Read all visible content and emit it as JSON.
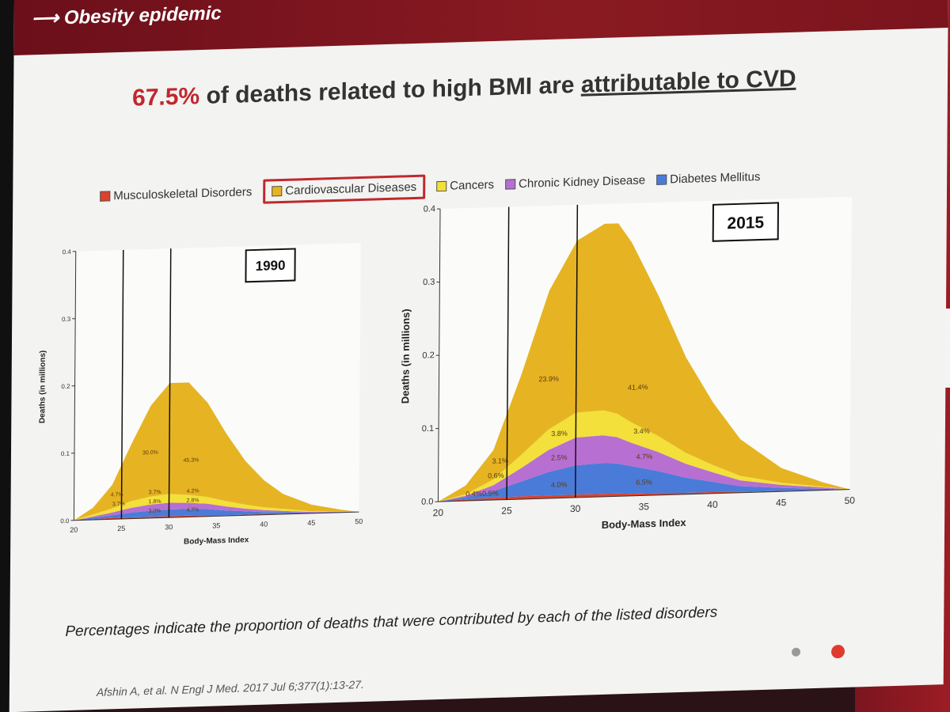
{
  "slide": {
    "header_title": "Obesity epidemic",
    "headline": {
      "pct": "67.5%",
      "middle": " of deaths related to high BMI are ",
      "underlined": "attributable to CVD"
    },
    "legend": [
      {
        "label": "Musculoskeletal Disorders",
        "color": "#d9432f"
      },
      {
        "label": "Cardiovascular Diseases",
        "color": "#e6b422",
        "highlighted": true
      },
      {
        "label": "Cancers",
        "color": "#f3e03a"
      },
      {
        "label": "Chronic Kidney Disease",
        "color": "#b76fd1"
      },
      {
        "label": "Diabetes Mellitus",
        "color": "#4b7bd9"
      }
    ],
    "footnote": "Percentages indicate the proportion of deaths that were contributed by each of the listed disorders",
    "citation": "Afshin A, et al. N Engl J Med. 2017 Jul 6;377(1):13-27."
  },
  "chart_data": [
    {
      "type": "area",
      "title": "1990",
      "xlabel": "Body-Mass Index",
      "ylabel": "Deaths (in millions)",
      "x": [
        20,
        22,
        24,
        26,
        28,
        30,
        32,
        34,
        36,
        38,
        40,
        42,
        45,
        48,
        50
      ],
      "xlim": [
        20,
        50
      ],
      "ylim": [
        0,
        0.4
      ],
      "xticks": [
        "20",
        "25",
        "30",
        "35",
        "40",
        "45",
        "50"
      ],
      "yticks": [
        "0.0",
        "0.1",
        "0.2",
        "0.3",
        "0.4"
      ],
      "vlines": [
        25,
        30
      ],
      "series": [
        {
          "name": "Musculoskeletal Disorders",
          "color": "#d9432f",
          "values": [
            0,
            0.001,
            0.002,
            0.002,
            0.002,
            0.002,
            0.002,
            0.002,
            0.001,
            0.001,
            0.001,
            0.001,
            0,
            0,
            0
          ]
        },
        {
          "name": "Diabetes Mellitus",
          "color": "#4b7bd9",
          "values": [
            0,
            0.002,
            0.004,
            0.007,
            0.009,
            0.01,
            0.01,
            0.009,
            0.007,
            0.005,
            0.003,
            0.002,
            0.001,
            0.0005,
            0
          ]
        },
        {
          "name": "Chronic Kidney Disease",
          "color": "#b76fd1",
          "values": [
            0,
            0.002,
            0.004,
            0.007,
            0.009,
            0.01,
            0.009,
            0.008,
            0.006,
            0.004,
            0.003,
            0.002,
            0.001,
            0.0005,
            0
          ]
        },
        {
          "name": "Cancers",
          "color": "#f3e03a",
          "values": [
            0,
            0.003,
            0.006,
            0.01,
            0.012,
            0.013,
            0.012,
            0.01,
            0.008,
            0.006,
            0.004,
            0.003,
            0.001,
            0.0005,
            0
          ]
        },
        {
          "name": "Cardiovascular Diseases",
          "color": "#e6b422",
          "values": [
            0,
            0.01,
            0.035,
            0.085,
            0.135,
            0.165,
            0.167,
            0.14,
            0.1,
            0.065,
            0.04,
            0.022,
            0.01,
            0.003,
            0
          ]
        }
      ],
      "annotations": [
        {
          "text": "30.0%",
          "x": 28,
          "y": 0.095
        },
        {
          "text": "45.3%",
          "x": 32.3,
          "y": 0.082
        },
        {
          "text": "4.7%",
          "x": 24.5,
          "y": 0.034
        },
        {
          "text": "3.7%",
          "x": 24.7,
          "y": 0.02
        },
        {
          "text": "3.7%",
          "x": 28.5,
          "y": 0.036
        },
        {
          "text": "4.2%",
          "x": 32.5,
          "y": 0.036
        },
        {
          "text": "1.8%",
          "x": 28.5,
          "y": 0.022
        },
        {
          "text": "2.8%",
          "x": 32.5,
          "y": 0.022
        },
        {
          "text": "3.0%",
          "x": 28.5,
          "y": 0.008
        },
        {
          "text": "4.7%",
          "x": 32.5,
          "y": 0.008
        }
      ]
    },
    {
      "type": "area",
      "title": "2015",
      "xlabel": "Body-Mass Index",
      "ylabel": "Deaths (in millions)",
      "x": [
        20,
        22,
        24,
        26,
        28,
        30,
        32,
        33,
        34,
        36,
        38,
        40,
        42,
        45,
        48,
        50
      ],
      "xlim": [
        20,
        50
      ],
      "ylim": [
        0,
        0.4
      ],
      "xticks": [
        "20",
        "25",
        "30",
        "35",
        "40",
        "45",
        "50"
      ],
      "yticks": [
        "0.0",
        "0.1",
        "0.2",
        "0.3",
        "0.4"
      ],
      "vlines": [
        25,
        30
      ],
      "series": [
        {
          "name": "Musculoskeletal Disorders",
          "color": "#d9432f",
          "values": [
            0,
            0.002,
            0.003,
            0.004,
            0.004,
            0.004,
            0.004,
            0.004,
            0.003,
            0.003,
            0.002,
            0.002,
            0.001,
            0.001,
            0,
            0
          ]
        },
        {
          "name": "Diabetes Mellitus",
          "color": "#4b7bd9",
          "values": [
            0,
            0.003,
            0.009,
            0.02,
            0.032,
            0.04,
            0.042,
            0.041,
            0.038,
            0.03,
            0.021,
            0.014,
            0.008,
            0.004,
            0.002,
            0
          ]
        },
        {
          "name": "Chronic Kidney Disease",
          "color": "#b76fd1",
          "values": [
            0,
            0.002,
            0.008,
            0.018,
            0.03,
            0.038,
            0.038,
            0.036,
            0.032,
            0.026,
            0.019,
            0.013,
            0.008,
            0.004,
            0.002,
            0
          ]
        },
        {
          "name": "Cancers",
          "color": "#f3e03a",
          "values": [
            0,
            0.002,
            0.008,
            0.018,
            0.028,
            0.034,
            0.034,
            0.032,
            0.028,
            0.022,
            0.015,
            0.01,
            0.006,
            0.003,
            0.001,
            0
          ]
        },
        {
          "name": "Cardiovascular Diseases",
          "color": "#e6b422",
          "values": [
            0,
            0.012,
            0.04,
            0.11,
            0.19,
            0.235,
            0.255,
            0.26,
            0.245,
            0.19,
            0.13,
            0.085,
            0.05,
            0.02,
            0.006,
            0
          ]
        }
      ],
      "annotations": [
        {
          "text": "23.9%",
          "x": 28,
          "y": 0.16
        },
        {
          "text": "41.4%",
          "x": 34.5,
          "y": 0.145
        },
        {
          "text": "3.1%",
          "x": 24.5,
          "y": 0.05
        },
        {
          "text": "0.6%",
          "x": 24.2,
          "y": 0.03
        },
        {
          "text": "3.8%",
          "x": 28.8,
          "y": 0.085
        },
        {
          "text": "3.4%",
          "x": 34.8,
          "y": 0.085
        },
        {
          "text": "2.5%",
          "x": 28.8,
          "y": 0.052
        },
        {
          "text": "4.7%",
          "x": 35,
          "y": 0.05
        },
        {
          "text": "4.0%",
          "x": 28.8,
          "y": 0.015
        },
        {
          "text": "6.5%",
          "x": 35,
          "y": 0.015
        },
        {
          "text": "0.4%",
          "x": 22.6,
          "y": 0.006
        },
        {
          "text": "0.5%",
          "x": 23.8,
          "y": 0.006
        }
      ]
    }
  ]
}
